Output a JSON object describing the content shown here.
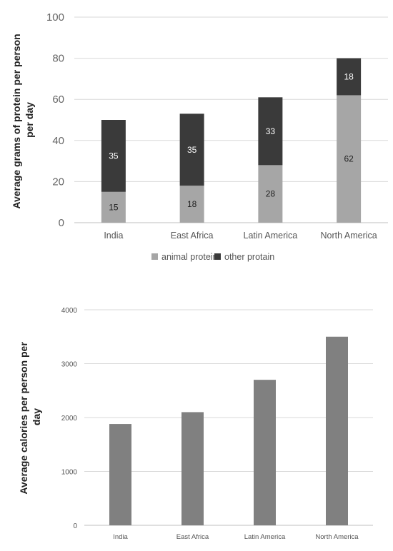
{
  "chart_data": [
    {
      "type": "bar",
      "stacked": true,
      "categories": [
        "India",
        "East Africa",
        "Latin America",
        "North America"
      ],
      "series": [
        {
          "name": "animal protein",
          "values": [
            15,
            18,
            28,
            62
          ],
          "color": "#a6a6a6",
          "label_color": "#222222"
        },
        {
          "name": "other protain",
          "values": [
            35,
            35,
            33,
            18
          ],
          "color": "#3a3a3a",
          "label_color": "#ffffff"
        }
      ],
      "ylabel_lines": [
        "Average grams of protein per person",
        "per day"
      ],
      "ylim": [
        0,
        100
      ],
      "yticks": [
        0,
        20,
        40,
        60,
        80,
        100
      ],
      "grid": true,
      "legend": "bottom"
    },
    {
      "type": "bar",
      "categories": [
        "India",
        "East Africa",
        "Latin America",
        "North America"
      ],
      "series": [
        {
          "values": [
            1880,
            2100,
            2700,
            3500
          ],
          "color": "#808080"
        }
      ],
      "ylabel_lines": [
        "Average calories per person per",
        "day"
      ],
      "ylim": [
        0,
        4000
      ],
      "yticks": [
        0,
        1000,
        2000,
        3000,
        4000
      ],
      "grid": true,
      "legend": "none"
    }
  ]
}
